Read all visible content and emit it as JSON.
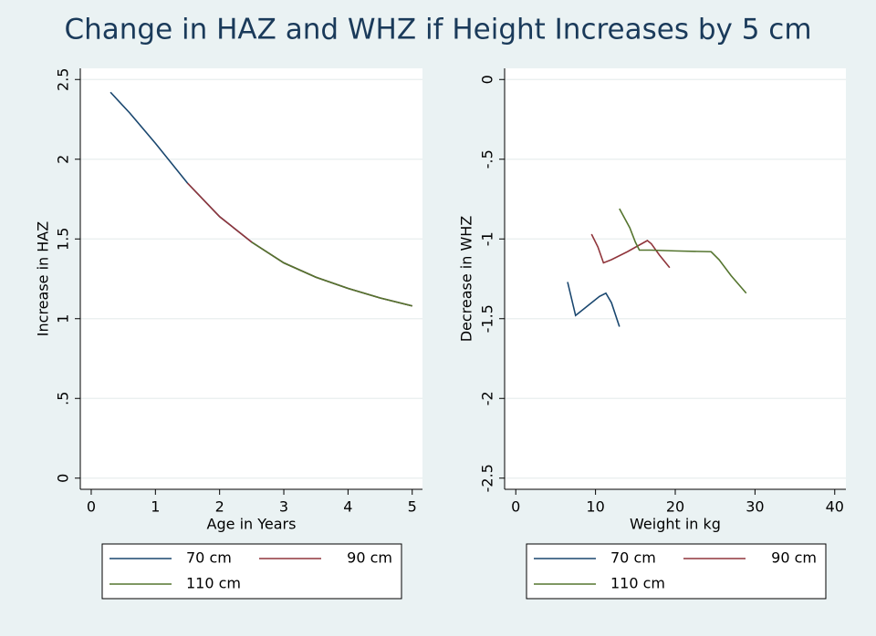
{
  "title": "Change in HAZ and WHZ if Height Increases by 5 cm",
  "chart_data": [
    {
      "type": "line",
      "xlabel": "Age in Years",
      "ylabel": "Increase in HAZ",
      "xlim": [
        -0.17,
        5.16
      ],
      "ylim": [
        -0.07,
        2.57
      ],
      "xticks": [
        0,
        1,
        2,
        3,
        4,
        5
      ],
      "yticks": [
        0,
        {
          "value": 0.5,
          "label": ".5"
        },
        1,
        1.5,
        2,
        2.5
      ],
      "grid": true,
      "legend": "bottom",
      "series": [
        {
          "name": "70 cm",
          "color": "#1a476f",
          "x": [
            0.3,
            0.6,
            1,
            1.5,
            2,
            2.5,
            3,
            3.5,
            4,
            4.5,
            5
          ],
          "values": [
            2.42,
            2.29,
            2.1,
            1.85,
            1.64,
            1.48,
            1.35,
            1.26,
            1.19,
            1.13,
            1.08
          ]
        },
        {
          "name": "90 cm",
          "color": "#90353b",
          "x": [
            1.5,
            2,
            2.5,
            3,
            3.5,
            4,
            4.5,
            5
          ],
          "values": [
            1.85,
            1.64,
            1.48,
            1.35,
            1.26,
            1.19,
            1.13,
            1.08
          ]
        },
        {
          "name": "110 cm",
          "color": "#55752f",
          "x": [
            2.5,
            3,
            3.5,
            4,
            4.5,
            5
          ],
          "values": [
            1.48,
            1.35,
            1.26,
            1.19,
            1.13,
            1.08
          ]
        }
      ]
    },
    {
      "type": "line",
      "xlabel": "Weight in kg",
      "ylabel": "Decrease in WHZ",
      "xlim": [
        -1.4,
        41.4
      ],
      "ylim": [
        -2.57,
        0.07
      ],
      "xticks": [
        0,
        10,
        20,
        30,
        40
      ],
      "yticks": [
        {
          "value": -2.5,
          "label": "-2.5"
        },
        -2,
        {
          "value": -1.5,
          "label": "-1.5"
        },
        -1,
        {
          "value": -0.5,
          "label": "-.5"
        },
        0
      ],
      "grid": true,
      "legend": "bottom",
      "series": [
        {
          "name": "70 cm",
          "color": "#1a476f",
          "x": [
            6.5,
            7.5,
            9,
            10.5,
            11.3,
            12,
            13
          ],
          "values": [
            -1.27,
            -1.48,
            -1.42,
            -1.36,
            -1.34,
            -1.4,
            -1.55
          ]
        },
        {
          "name": "90 cm",
          "color": "#90353b",
          "x": [
            9.5,
            10.3,
            11,
            12,
            14,
            16.5,
            17,
            18,
            19.3
          ],
          "values": [
            -0.97,
            -1.05,
            -1.15,
            -1.13,
            -1.08,
            -1.01,
            -1.03,
            -1.1,
            -1.18
          ]
        },
        {
          "name": "110 cm",
          "color": "#55752f",
          "x": [
            13,
            14.3,
            15,
            15.5,
            17,
            20,
            24.5,
            25.5,
            27,
            28.9
          ],
          "values": [
            -0.81,
            -0.93,
            -1.02,
            -1.07,
            -1.07,
            -1.075,
            -1.08,
            -1.13,
            -1.23,
            -1.34
          ]
        }
      ]
    }
  ]
}
